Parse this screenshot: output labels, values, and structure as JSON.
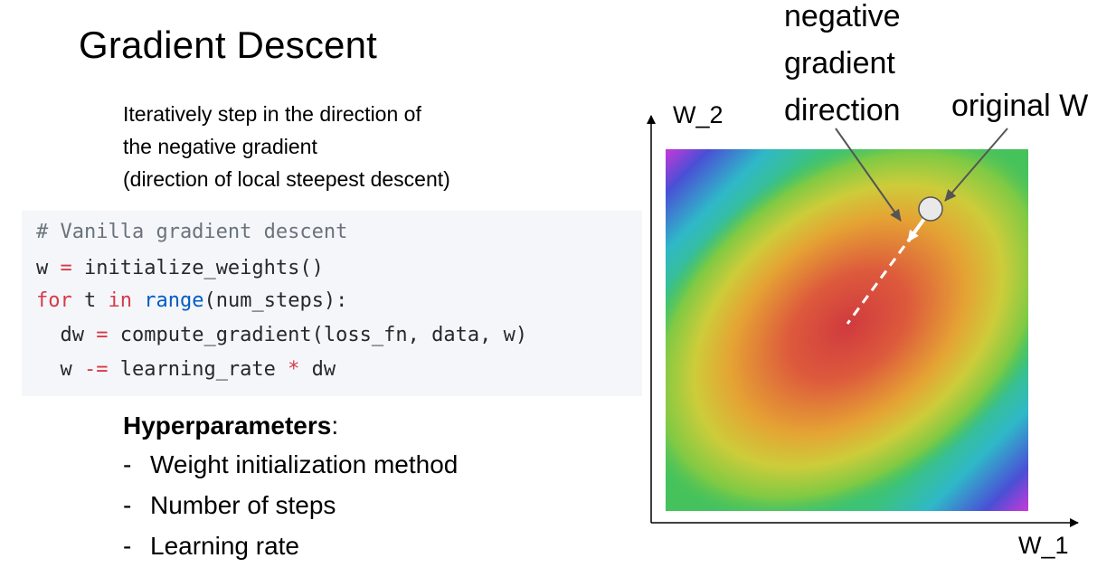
{
  "slide": {
    "title": "Gradient Descent",
    "subtitle_lines": [
      "Iteratively step in the direction of",
      "the negative gradient",
      "(direction of local steepest descent)"
    ]
  },
  "code": {
    "comment": "# Vanilla gradient descent",
    "line2_a": "w ",
    "line2_op": "=",
    "line2_b": " initialize_weights()",
    "line3_for": "for",
    "line3_t": " t ",
    "line3_in": "in",
    "line3_sp": " ",
    "line3_range": "range",
    "line3_rest": "(num_steps):",
    "line4_a": "  dw ",
    "line4_op": "=",
    "line4_b": " compute_gradient(loss_fn, data, w)",
    "line5_a": "  w ",
    "line5_op": "-=",
    "line5_b": " learning_rate ",
    "line5_star": "*",
    "line5_c": " dw",
    "colors": {
      "comment": "#6a737d",
      "keyword": "#d73a49",
      "builtin": "#005cc5",
      "text": "#24292e"
    }
  },
  "hyperparameters": {
    "heading": "Hyperparameters",
    "colon": ":",
    "items": [
      "Weight initialization method",
      "Number of steps",
      "Learning rate"
    ]
  },
  "plot": {
    "y_axis_label": "W_2",
    "x_axis_label": "W_1",
    "annotation_negative": [
      "negative",
      "gradient",
      "direction"
    ],
    "annotation_original": "original W"
  }
}
